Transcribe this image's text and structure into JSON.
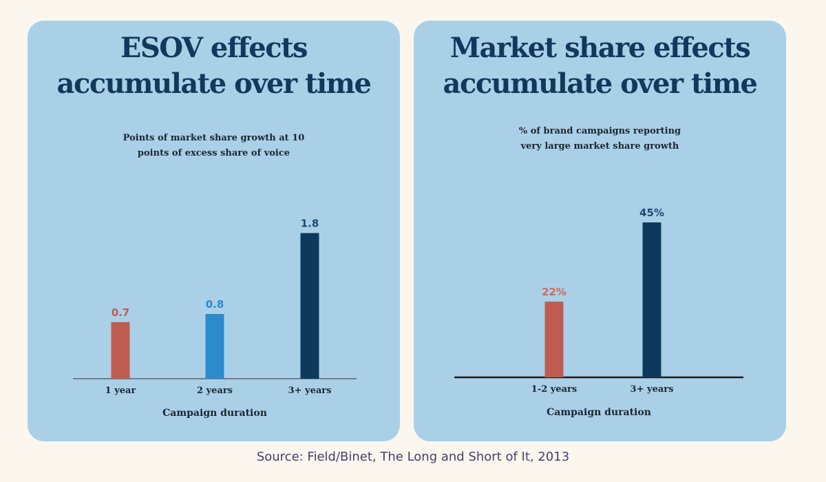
{
  "chart_data": [
    {
      "type": "bar",
      "title": "ESOV effects accumulate over time",
      "subtitle_lines": [
        "Points of market share growth at 10",
        "points of excess share of voice"
      ],
      "xlabel": "Campaign duration",
      "ylabel": "",
      "categories": [
        "1 year",
        "2 years",
        "3+ years"
      ],
      "values": [
        0.7,
        0.8,
        1.8
      ],
      "data_labels": [
        "0.7",
        "0.8",
        "1.8"
      ],
      "colors": [
        "#c05b50",
        "#2b8bcb",
        "#0d3a5c"
      ],
      "label_colors": [
        "#c05b50",
        "#2b8bcb",
        "#1c4a73"
      ],
      "ylim": [
        0,
        2
      ],
      "grid": false,
      "legend": "none"
    },
    {
      "type": "bar",
      "title": "Market share effects accumulate over time",
      "subtitle_lines": [
        "% of brand campaigns reporting",
        "very large market share growth"
      ],
      "xlabel": "Campaign duration",
      "ylabel": "",
      "categories": [
        "1-2 years",
        "3+ years"
      ],
      "values": [
        22,
        45
      ],
      "data_labels": [
        "22%",
        "45%"
      ],
      "colors": [
        "#c05b50",
        "#0d3a5c"
      ],
      "label_colors": [
        "#d06a5e",
        "#1c4a73"
      ],
      "ylim": [
        0,
        50
      ],
      "grid": false,
      "legend": "none"
    }
  ],
  "panels": [
    {
      "title_lines": [
        "ESOV effects",
        "accumulate over time"
      ]
    },
    {
      "title_lines": [
        "Market share effects",
        "accumulate over time"
      ]
    }
  ],
  "footer": {
    "source": "Source: Field/Binet,  The Long and Short of It, 2013"
  },
  "colors": {
    "page_background": "#fbf7ef",
    "panel_background": "#aad0e8",
    "title": "#14385c",
    "axis_left": "#6f7f8e",
    "axis_right": "#1b1b1b",
    "source_text": "#4a3d6b"
  }
}
